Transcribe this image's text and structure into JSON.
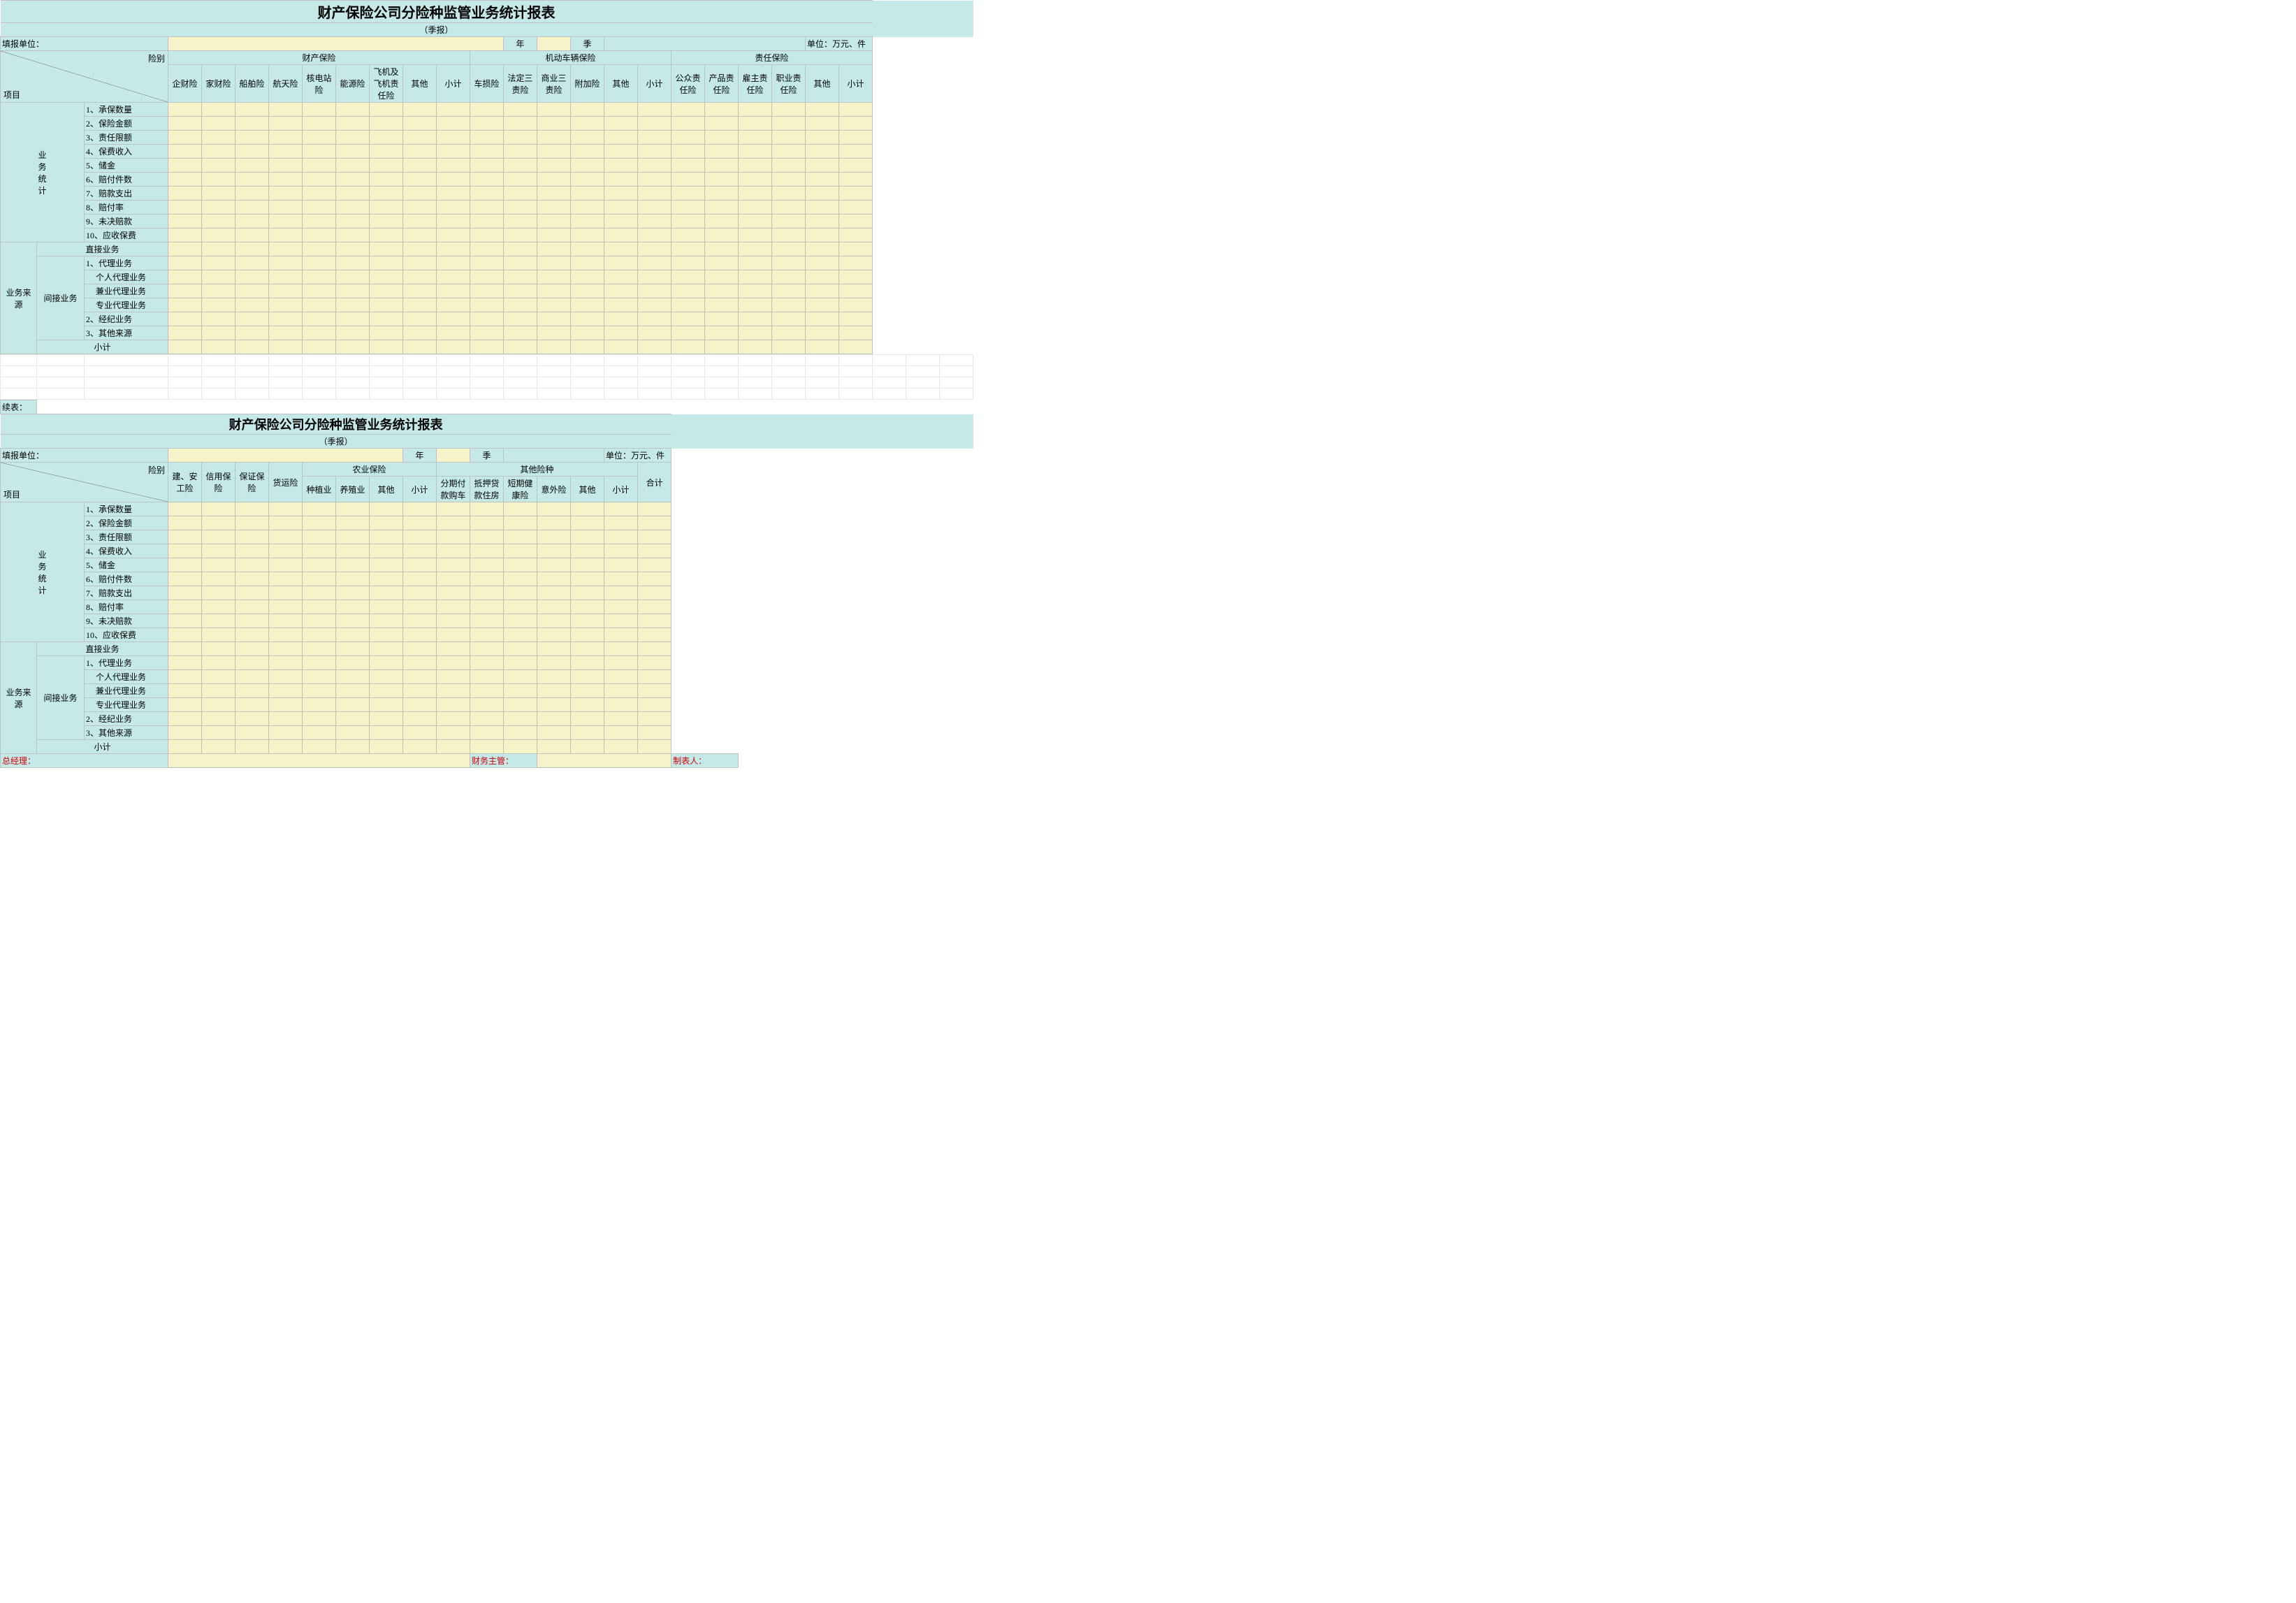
{
  "colors": {
    "blue": "#c5e8e8",
    "yellow": "#f5f3c7",
    "grid": "#c0c0c0",
    "light_grid": "#e8e8e8",
    "red": "#d00000"
  },
  "title": "财产保险公司分险种监管业务统计报表",
  "subtitle": "（季报）",
  "filling_unit_label": "填报单位：",
  "year_label": "年",
  "quarter_label": "季",
  "unit_label": "单位：万元、件",
  "continued_label": "续表：",
  "header": {
    "risk_type": "险别",
    "project": "项目",
    "caichan_baoxian": "财产保险",
    "jidong_cheliang": "机动车辆保险",
    "zeren_baoxian": "责任保险",
    "cols1": [
      "企财险",
      "家财险",
      "船舶险",
      "航天险",
      "核电站险",
      "能源险",
      "飞机及飞机责任险",
      "其他",
      "小计",
      "车损险",
      "法定三责险",
      "商业三责险",
      "附加险",
      "其他",
      "小计",
      "公众责任险",
      "产品责任险",
      "雇主责任险",
      "职业责任险",
      "其他",
      "小计"
    ],
    "jian_an": "建、安工险",
    "xinyong": "信用保险",
    "baozheng": "保证保险",
    "huoyun": "货运险",
    "nongye": "农业保险",
    "qita_xianzhong": "其他险种",
    "heji": "合计",
    "cols2": [
      "种植业",
      "养殖业",
      "其他",
      "小计",
      "分期付款购车",
      "抵押贷款住房",
      "短期健康险",
      "意外险",
      "其他",
      "小计"
    ]
  },
  "rows": {
    "section1": "业务统计",
    "section2": "业务来源",
    "direct": "直接业务",
    "indirect": "间接业务",
    "subtotal": "小计",
    "items1": [
      "1、承保数量",
      "2、保险金额",
      "3、责任限额",
      "4、保费收入",
      "5、储金",
      "6、赔付件数",
      "7、赔款支出",
      "8、赔付率",
      "9、未决赔款",
      "10、应收保费"
    ],
    "items2": [
      "1、代理业务",
      "个人代理业务",
      "兼业代理业务",
      "专业代理业务",
      "2、经纪业务",
      "3、其他来源"
    ]
  },
  "footer": {
    "manager": "总经理：",
    "finance": "财务主管：",
    "preparer": "制表人："
  }
}
